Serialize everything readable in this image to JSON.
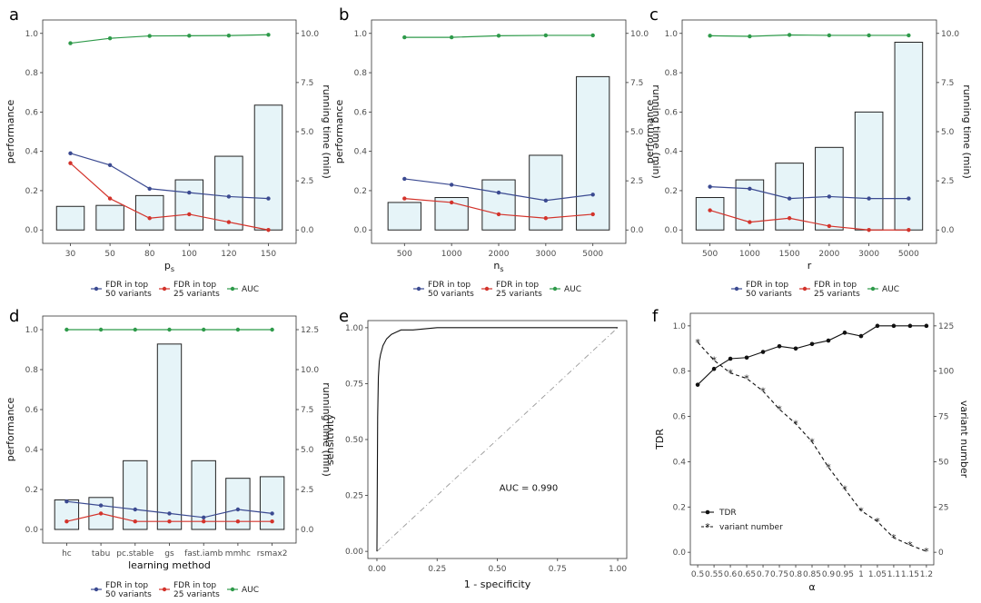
{
  "colors": {
    "fdr50": "#3b4a91",
    "fdr25": "#d3332b",
    "auc": "#2e9a4a",
    "bar_fill": "#e6f4f8",
    "bar_stroke": "#222222"
  },
  "legend": {
    "fdr50_line1": "FDR in top",
    "fdr50_line2": "50 variants",
    "fdr25_line1": "FDR in top",
    "fdr25_line2": "25 variants",
    "auc": "AUC"
  },
  "chart_data": [
    {
      "panel": "a",
      "type": "bar+line",
      "xlabel": "p",
      "xlabel_sub": "s",
      "ylabel": "performance",
      "ylabel_right": "running time (min)",
      "categories": [
        "30",
        "50",
        "80",
        "100",
        "120",
        "150"
      ],
      "ylim": [
        0,
        1
      ],
      "yticks": [
        "0.0",
        "0.2",
        "0.4",
        "0.6",
        "0.8",
        "1.0"
      ],
      "ylim_right": [
        0,
        10
      ],
      "yticks_right": [
        "0.0",
        "2.5",
        "5.0",
        "7.5",
        "10.0"
      ],
      "bars": [
        1.2,
        1.25,
        1.75,
        2.55,
        3.75,
        6.35
      ],
      "series": [
        {
          "name": "FDR in top 50 variants",
          "values": [
            0.39,
            0.33,
            0.21,
            0.19,
            0.17,
            0.16
          ]
        },
        {
          "name": "FDR in top 25 variants",
          "values": [
            0.34,
            0.16,
            0.06,
            0.08,
            0.04,
            0.0
          ]
        },
        {
          "name": "AUC",
          "values": [
            0.95,
            0.975,
            0.987,
            0.988,
            0.989,
            0.993
          ]
        }
      ]
    },
    {
      "panel": "b",
      "type": "bar+line",
      "xlabel": "n",
      "xlabel_sub": "s",
      "ylabel": "performance",
      "ylabel_right": "running time (min)",
      "categories": [
        "500",
        "1000",
        "2000",
        "3000",
        "5000"
      ],
      "ylim": [
        0,
        1
      ],
      "yticks": [
        "0.0",
        "0.2",
        "0.4",
        "0.6",
        "0.8",
        "1.0"
      ],
      "ylim_right": [
        0,
        10
      ],
      "yticks_right": [
        "0.0",
        "2.5",
        "5.0",
        "7.5",
        "10.0"
      ],
      "bars": [
        1.4,
        1.65,
        2.55,
        3.8,
        7.8
      ],
      "series": [
        {
          "name": "FDR in top 50 variants",
          "values": [
            0.26,
            0.23,
            0.19,
            0.15,
            0.18
          ]
        },
        {
          "name": "FDR in top 25 variants",
          "values": [
            0.16,
            0.14,
            0.08,
            0.06,
            0.08
          ]
        },
        {
          "name": "AUC",
          "values": [
            0.98,
            0.98,
            0.988,
            0.99,
            0.99
          ]
        }
      ]
    },
    {
      "panel": "c",
      "type": "bar+line",
      "xlabel": "r",
      "xlabel_sub": "",
      "ylabel": "performance",
      "ylabel_right": "running time (min)",
      "categories": [
        "500",
        "1000",
        "1500",
        "2000",
        "3000",
        "5000"
      ],
      "ylim": [
        0,
        1
      ],
      "yticks": [
        "0.0",
        "0.2",
        "0.4",
        "0.6",
        "0.8",
        "1.0"
      ],
      "ylim_right": [
        0,
        10
      ],
      "yticks_right": [
        "0.0",
        "2.5",
        "5.0",
        "7.5",
        "10.0"
      ],
      "bars": [
        1.65,
        2.55,
        3.4,
        4.2,
        6.0,
        9.55
      ],
      "series": [
        {
          "name": "FDR in top 50 variants",
          "values": [
            0.22,
            0.21,
            0.16,
            0.17,
            0.16,
            0.16
          ]
        },
        {
          "name": "FDR in top 25 variants",
          "values": [
            0.1,
            0.04,
            0.06,
            0.02,
            0.0,
            0.0
          ]
        },
        {
          "name": "AUC",
          "values": [
            0.988,
            0.985,
            0.992,
            0.99,
            0.99,
            0.99
          ]
        }
      ]
    },
    {
      "panel": "d",
      "type": "bar+line",
      "xlabel": "learning method",
      "xlabel_sub": "",
      "ylabel": "performance",
      "ylabel_right": "running time (min)",
      "categories": [
        "hc",
        "tabu",
        "pc.stable",
        "gs",
        "fast.iamb",
        "mmhc",
        "rsmax2"
      ],
      "ylim": [
        0,
        1
      ],
      "yticks": [
        "0.0",
        "0.2",
        "0.4",
        "0.6",
        "0.8",
        "1.0"
      ],
      "ylim_right": [
        0,
        12.5
      ],
      "yticks_right": [
        "0.0",
        "2.5",
        "5.0",
        "7.5",
        "10.0",
        "12.5"
      ],
      "bars": [
        1.85,
        2.0,
        4.3,
        11.6,
        4.3,
        3.2,
        3.3
      ],
      "series": [
        {
          "name": "FDR in top 50 variants",
          "values": [
            0.14,
            0.12,
            0.1,
            0.08,
            0.06,
            0.1,
            0.08
          ]
        },
        {
          "name": "FDR in top 25 variants",
          "values": [
            0.04,
            0.08,
            0.04,
            0.04,
            0.04,
            0.04,
            0.04
          ]
        },
        {
          "name": "AUC",
          "values": [
            1.0,
            1.0,
            1.0,
            1.0,
            1.0,
            1.0,
            1.0
          ]
        }
      ]
    },
    {
      "panel": "e",
      "type": "line",
      "xlabel": "1 - specificity",
      "ylabel": "sensitivity",
      "xlim": [
        0,
        1
      ],
      "ylim": [
        0,
        1
      ],
      "xticks": [
        "0.00",
        "0.25",
        "0.50",
        "0.75",
        "1.00"
      ],
      "yticks": [
        "0.00",
        "0.25",
        "0.50",
        "0.75",
        "1.00"
      ],
      "annotation": "AUC =  0.990",
      "roc_x": [
        0,
        0.003,
        0.006,
        0.01,
        0.015,
        0.02,
        0.025,
        0.03,
        0.04,
        0.05,
        0.06,
        0.08,
        0.1,
        0.12,
        0.15,
        0.2,
        0.25,
        1.0
      ],
      "roc_y": [
        0,
        0.6,
        0.78,
        0.85,
        0.88,
        0.9,
        0.92,
        0.93,
        0.95,
        0.96,
        0.97,
        0.98,
        0.99,
        0.99,
        0.99,
        0.995,
        1.0,
        1.0
      ]
    },
    {
      "panel": "f",
      "type": "line",
      "xlabel": "α",
      "ylabel": "TDR",
      "ylabel_right": "variant number",
      "categories": [
        "0.5",
        "0.55",
        "0.6",
        "0.65",
        "0.7",
        "0.75",
        "0.8",
        "0.85",
        "0.9",
        "0.95",
        "1",
        "1.05",
        "1.1",
        "1.15",
        "1.2"
      ],
      "ylim": [
        0,
        1
      ],
      "yticks": [
        "0.0",
        "0.2",
        "0.4",
        "0.6",
        "0.8",
        "1.0"
      ],
      "ylim_right": [
        0,
        125
      ],
      "yticks_right": [
        "0",
        "25",
        "50",
        "75",
        "100",
        "125"
      ],
      "series": [
        {
          "name": "TDR",
          "values": [
            0.74,
            0.81,
            0.855,
            0.86,
            0.885,
            0.91,
            0.9,
            0.92,
            0.935,
            0.97,
            0.955,
            1.0,
            1.0,
            1.0,
            1.0
          ]
        },
        {
          "name": "variant number",
          "values": [
            116,
            106,
            99,
            96,
            89,
            79,
            71,
            61,
            47,
            35,
            23,
            17,
            8,
            4,
            0.5
          ]
        }
      ],
      "legend": [
        "TDR",
        "variant number"
      ]
    }
  ]
}
